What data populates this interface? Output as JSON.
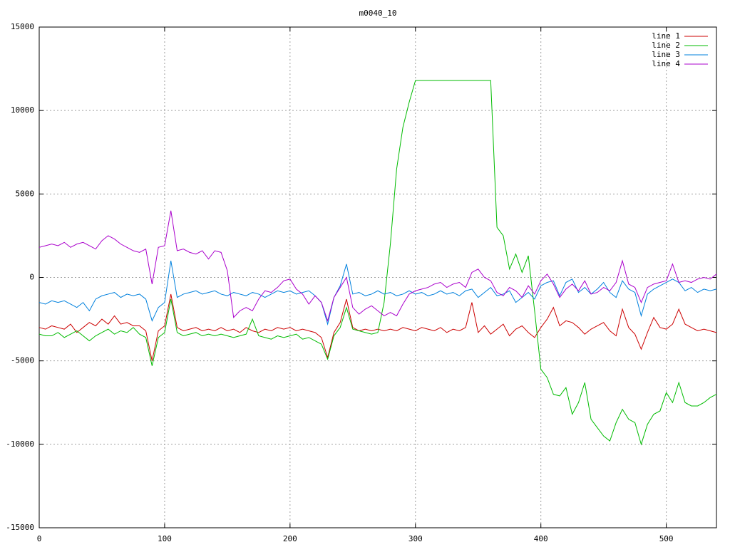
{
  "chart_data": {
    "type": "line",
    "title": "m0040_10",
    "x": [
      0,
      5,
      10,
      15,
      20,
      25,
      30,
      35,
      40,
      45,
      50,
      55,
      60,
      65,
      70,
      75,
      80,
      85,
      90,
      95,
      100,
      105,
      110,
      115,
      120,
      125,
      130,
      135,
      140,
      145,
      150,
      155,
      160,
      165,
      170,
      175,
      180,
      185,
      190,
      195,
      200,
      205,
      210,
      215,
      220,
      225,
      230,
      235,
      240,
      245,
      250,
      255,
      260,
      265,
      270,
      275,
      280,
      285,
      290,
      295,
      300,
      305,
      310,
      315,
      320,
      325,
      330,
      335,
      340,
      345,
      350,
      355,
      360,
      365,
      370,
      375,
      380,
      385,
      390,
      395,
      400,
      405,
      410,
      415,
      420,
      425,
      430,
      435,
      440,
      445,
      450,
      455,
      460,
      465,
      470,
      475,
      480,
      485,
      490,
      495,
      500,
      505,
      510,
      515,
      520,
      525,
      530,
      535,
      540
    ],
    "series": [
      {
        "name": "line 1",
        "color": "#cc0000",
        "values": [
          -3000,
          -3100,
          -2900,
          -3000,
          -3100,
          -2800,
          -3300,
          -3000,
          -2700,
          -2900,
          -2500,
          -2800,
          -2300,
          -2800,
          -2700,
          -2900,
          -2900,
          -3200,
          -5000,
          -3200,
          -2900,
          -1000,
          -3000,
          -3200,
          -3100,
          -3000,
          -3200,
          -3100,
          -3200,
          -3000,
          -3200,
          -3100,
          -3300,
          -3000,
          -3200,
          -3300,
          -3100,
          -3200,
          -3000,
          -3100,
          -3000,
          -3200,
          -3100,
          -3200,
          -3300,
          -3600,
          -4800,
          -3300,
          -2700,
          -1300,
          -3000,
          -3200,
          -3100,
          -3200,
          -3100,
          -3200,
          -3100,
          -3200,
          -3000,
          -3100,
          -3200,
          -3000,
          -3100,
          -3200,
          -3000,
          -3300,
          -3100,
          -3200,
          -3000,
          -1500,
          -3300,
          -2900,
          -3400,
          -3100,
          -2800,
          -3500,
          -3100,
          -2900,
          -3300,
          -3600,
          -3000,
          -2500,
          -1800,
          -2900,
          -2600,
          -2700,
          -3000,
          -3400,
          -3100,
          -2900,
          -2700,
          -3200,
          -3500,
          -1900,
          -3000,
          -3400,
          -4300,
          -3300,
          -2400,
          -3000,
          -3100,
          -2800,
          -1900,
          -2800,
          -3000,
          -3200,
          -3100,
          -3200,
          -3300
        ]
      },
      {
        "name": "line 2",
        "color": "#00bb00",
        "values": [
          -3400,
          -3500,
          -3500,
          -3300,
          -3600,
          -3400,
          -3200,
          -3500,
          -3800,
          -3500,
          -3300,
          -3100,
          -3400,
          -3200,
          -3300,
          -3000,
          -3400,
          -3600,
          -5300,
          -3600,
          -3300,
          -1300,
          -3300,
          -3500,
          -3400,
          -3300,
          -3500,
          -3400,
          -3500,
          -3400,
          -3500,
          -3600,
          -3500,
          -3400,
          -2500,
          -3500,
          -3600,
          -3700,
          -3500,
          -3600,
          -3500,
          -3400,
          -3700,
          -3600,
          -3800,
          -4000,
          -4900,
          -3500,
          -3000,
          -1800,
          -3100,
          -3200,
          -3300,
          -3400,
          -3300,
          -1500,
          2000,
          6500,
          9000,
          10500,
          11800,
          11800,
          11800,
          11800,
          11800,
          11800,
          11800,
          11800,
          11800,
          11800,
          11800,
          11800,
          11800,
          3000,
          2500,
          500,
          1400,
          300,
          1300,
          -2000,
          -5500,
          -6000,
          -7000,
          -7100,
          -6600,
          -8200,
          -7500,
          -6300,
          -8500,
          -9000,
          -9500,
          -9800,
          -8700,
          -7900,
          -8500,
          -8700,
          -10000,
          -8800,
          -8200,
          -8000,
          -6900,
          -7500,
          -6300,
          -7500,
          -7700,
          -7700,
          -7500,
          -7200,
          -7000
        ]
      },
      {
        "name": "line 3",
        "color": "#0080dd",
        "values": [
          -1500,
          -1600,
          -1400,
          -1500,
          -1400,
          -1600,
          -1800,
          -1500,
          -2000,
          -1300,
          -1100,
          -1000,
          -900,
          -1200,
          -1000,
          -1100,
          -1000,
          -1300,
          -2600,
          -1800,
          -1500,
          1000,
          -1200,
          -1000,
          -900,
          -800,
          -1000,
          -900,
          -800,
          -1000,
          -1100,
          -900,
          -1000,
          -1100,
          -900,
          -1000,
          -1200,
          -1000,
          -800,
          -900,
          -800,
          -1000,
          -900,
          -800,
          -1100,
          -1500,
          -2800,
          -1200,
          -500,
          800,
          -1000,
          -900,
          -1100,
          -1000,
          -800,
          -1000,
          -900,
          -1100,
          -1000,
          -800,
          -1000,
          -900,
          -1100,
          -1000,
          -800,
          -1000,
          -900,
          -1100,
          -800,
          -700,
          -1200,
          -900,
          -600,
          -1100,
          -1000,
          -800,
          -1500,
          -1200,
          -900,
          -1300,
          -500,
          -300,
          -200,
          -1100,
          -300,
          -100,
          -900,
          -600,
          -1000,
          -700,
          -300,
          -900,
          -1200,
          -200,
          -700,
          -900,
          -2300,
          -1000,
          -700,
          -500,
          -300,
          -100,
          -300,
          -800,
          -600,
          -900,
          -700,
          -800,
          -700
        ]
      },
      {
        "name": "line 4",
        "color": "#aa00cc",
        "values": [
          1800,
          1900,
          2000,
          1900,
          2100,
          1800,
          2000,
          2100,
          1900,
          1700,
          2200,
          2500,
          2300,
          2000,
          1800,
          1600,
          1500,
          1700,
          -400,
          1800,
          1900,
          4000,
          1600,
          1700,
          1500,
          1400,
          1600,
          1100,
          1600,
          1500,
          400,
          -2400,
          -2000,
          -1800,
          -2000,
          -1300,
          -800,
          -900,
          -600,
          -200,
          -100,
          -700,
          -1000,
          -1600,
          -1100,
          -1500,
          -2600,
          -1200,
          -600,
          0,
          -1800,
          -2200,
          -1900,
          -1700,
          -2000,
          -2300,
          -2100,
          -2300,
          -1600,
          -1000,
          -800,
          -700,
          -600,
          -400,
          -300,
          -600,
          -400,
          -300,
          -600,
          300,
          500,
          0,
          -200,
          -900,
          -1100,
          -600,
          -800,
          -1200,
          -500,
          -1000,
          -200,
          200,
          -400,
          -1200,
          -700,
          -400,
          -800,
          -200,
          -1000,
          -900,
          -600,
          -800,
          -300,
          1000,
          -400,
          -600,
          -1500,
          -600,
          -400,
          -300,
          -200,
          800,
          -300,
          -200,
          -300,
          -100,
          0,
          -100,
          200
        ]
      }
    ],
    "xlim": [
      0,
      540
    ],
    "xticks": [
      0,
      100,
      200,
      300,
      400,
      500
    ],
    "ylim": [
      -15000,
      15000
    ],
    "yticks": [
      -15000,
      -10000,
      -5000,
      0,
      5000,
      10000,
      15000
    ],
    "grid": true,
    "legend": "top-right"
  }
}
